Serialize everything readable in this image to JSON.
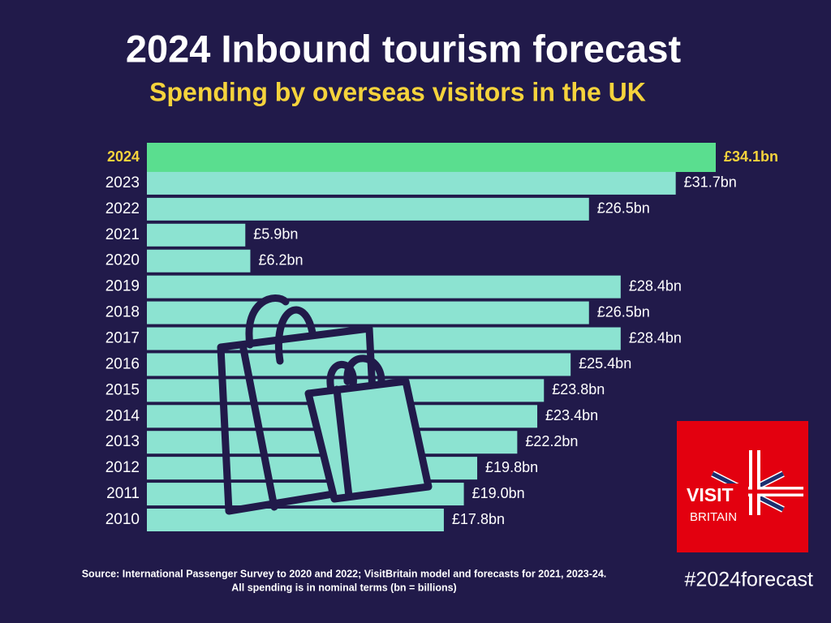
{
  "chart_data": {
    "type": "hbar",
    "title": "2024 Inbound tourism forecast",
    "subtitle": "Spending by overseas visitors in the UK",
    "categories": [
      "2024",
      "2023",
      "2022",
      "2021",
      "2020",
      "2019",
      "2018",
      "2017",
      "2016",
      "2015",
      "2014",
      "2013",
      "2012",
      "2011",
      "2010"
    ],
    "values": [
      34.1,
      31.7,
      26.5,
      5.9,
      6.2,
      28.4,
      26.5,
      28.4,
      25.4,
      23.8,
      23.4,
      22.2,
      19.8,
      19.0,
      17.8
    ],
    "value_labels": [
      "£34.1bn",
      "£31.7bn",
      "£26.5bn",
      "£5.9bn",
      "£6.2bn",
      "£28.4bn",
      "£26.5bn",
      "£28.4bn",
      "£25.4bn",
      "£23.8bn",
      "£23.4bn",
      "£22.2bn",
      "£19.8bn",
      "£19.0bn",
      "£17.8bn"
    ],
    "colors": [
      "#5ade8f",
      "#8ce3d1",
      "#8ce3d1",
      "#8ce3d1",
      "#8ce3d1",
      "#8ce3d1",
      "#8ce3d1",
      "#8ce3d1",
      "#8ce3d1",
      "#8ce3d1",
      "#8ce3d1",
      "#8ce3d1",
      "#8ce3d1",
      "#8ce3d1",
      "#8ce3d1"
    ],
    "source": [
      "Source: International Passenger Survey to 2020 and 2022; VisitBritain model and forecasts for 2021, 2023-24.",
      "All spending is in nominal terms (bn = billions)"
    ],
    "hashtag": "#2024forecast",
    "logo": [
      "VISIT",
      "BRITAIN"
    ]
  }
}
